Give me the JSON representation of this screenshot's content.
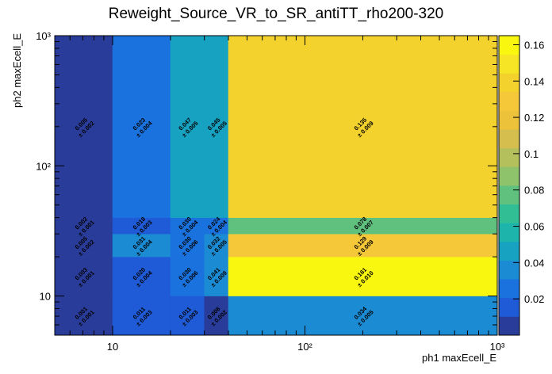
{
  "chart_data": {
    "type": "heatmap",
    "title": "Reweight_Source_VR_to_SR_antiTT_rho200-320",
    "xlabel": "ph1 maxEcell_E",
    "ylabel": "ph2 maxEcell_E",
    "x_scale": "log",
    "y_scale": "log",
    "xlim": [
      5,
      1000
    ],
    "ylim": [
      5,
      1000
    ],
    "x_edges": [
      5,
      10,
      20,
      30,
      40,
      1000
    ],
    "y_edges": [
      5,
      10,
      20,
      30,
      40,
      1000
    ],
    "x_ticks": [
      {
        "value": 10,
        "label": "10"
      },
      {
        "value": 100,
        "label": "10²"
      },
      {
        "value": 1000,
        "label": "10³"
      }
    ],
    "y_ticks": [
      {
        "value": 10,
        "label": "10"
      },
      {
        "value": 100,
        "label": "10²"
      },
      {
        "value": 1000,
        "label": "10³"
      }
    ],
    "cells": [
      {
        "xi": 0,
        "yi": 0,
        "value": 0.001,
        "text": "0.001",
        "err": "± 0.001"
      },
      {
        "xi": 1,
        "yi": 0,
        "value": 0.011,
        "text": "0.011",
        "err": "± 0.003"
      },
      {
        "xi": 2,
        "yi": 0,
        "value": 0.011,
        "text": "0.011",
        "err": "± 0.003"
      },
      {
        "xi": 3,
        "yi": 0,
        "value": 0.006,
        "text": "0.006",
        "err": "± 0.002"
      },
      {
        "xi": 4,
        "yi": 0,
        "value": 0.034,
        "text": "0.034",
        "err": "± 0.005"
      },
      {
        "xi": 0,
        "yi": 1,
        "value": 0.003,
        "text": "0.003",
        "err": "± 0.001"
      },
      {
        "xi": 1,
        "yi": 1,
        "value": 0.02,
        "text": "0.020",
        "err": "± 0.004"
      },
      {
        "xi": 2,
        "yi": 1,
        "value": 0.03,
        "text": "0.030",
        "err": "± 0.006"
      },
      {
        "xi": 3,
        "yi": 1,
        "value": 0.041,
        "text": "0.041",
        "err": "± 0.009"
      },
      {
        "xi": 4,
        "yi": 1,
        "value": 0.161,
        "text": "0.161",
        "err": "± 0.010"
      },
      {
        "xi": 0,
        "yi": 2,
        "value": 0.005,
        "text": "0.005",
        "err": "± 0.002"
      },
      {
        "xi": 1,
        "yi": 2,
        "value": 0.031,
        "text": "0.031",
        "err": "± 0.004"
      },
      {
        "xi": 2,
        "yi": 2,
        "value": 0.03,
        "text": "0.030",
        "err": "± 0.006"
      },
      {
        "xi": 3,
        "yi": 2,
        "value": 0.032,
        "text": "0.032",
        "err": "± 0.005"
      },
      {
        "xi": 4,
        "yi": 2,
        "value": 0.129,
        "text": "0.129",
        "err": "± 0.009"
      },
      {
        "xi": 0,
        "yi": 3,
        "value": 0.002,
        "text": "0.002",
        "err": "± 0.001"
      },
      {
        "xi": 1,
        "yi": 3,
        "value": 0.018,
        "text": "0.018",
        "err": "± 0.003"
      },
      {
        "xi": 2,
        "yi": 3,
        "value": 0.03,
        "text": "0.030",
        "err": "± 0.004"
      },
      {
        "xi": 3,
        "yi": 3,
        "value": 0.024,
        "text": "0.024",
        "err": "± 0.004"
      },
      {
        "xi": 4,
        "yi": 3,
        "value": 0.078,
        "text": "0.078",
        "err": "± 0.007"
      },
      {
        "xi": 0,
        "yi": 4,
        "value": 0.005,
        "text": "0.005",
        "err": "± 0.002"
      },
      {
        "xi": 1,
        "yi": 4,
        "value": 0.023,
        "text": "0.023",
        "err": "± 0.004"
      },
      {
        "xi": 2,
        "yi": 4,
        "value": 0.047,
        "text": "0.047",
        "err": "± 0.005"
      },
      {
        "xi": 3,
        "yi": 4,
        "value": 0.045,
        "text": "0.045",
        "err": "± 0.005"
      },
      {
        "xi": 4,
        "yi": 4,
        "value": 0.135,
        "text": "0.135",
        "err": "± 0.009"
      }
    ],
    "colorbar": {
      "min": 0,
      "max": 0.165,
      "ticks": [
        "0.02",
        "0.04",
        "0.06",
        "0.08",
        "0.1",
        "0.12",
        "0.14",
        "0.16"
      ],
      "tick_values": [
        0.02,
        0.04,
        0.06,
        0.08,
        0.1,
        0.12,
        0.14,
        0.16
      ],
      "palette": [
        "#2a3c9a",
        "#1f5bd6",
        "#1a72de",
        "#1b8bd3",
        "#17a2c2",
        "#1db4ac",
        "#32be95",
        "#60c17f",
        "#8ec26b",
        "#b4c05c",
        "#d5bd4e",
        "#ecc23a",
        "#f5c83a",
        "#f4d22e",
        "#f6e524",
        "#f9f70f"
      ]
    }
  }
}
